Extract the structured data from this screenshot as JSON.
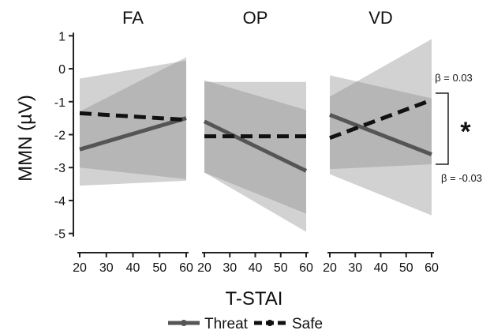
{
  "chart_data": {
    "type": "line",
    "ylabel": "MMN (µV)",
    "xlabel": "T-STAI",
    "xlim": [
      20,
      60
    ],
    "ylim": [
      -5.2,
      1.2
    ],
    "xticks": [
      20,
      30,
      40,
      50,
      60
    ],
    "yticks": [
      1,
      0,
      -1,
      -2,
      -3,
      -4,
      -5
    ],
    "grid": false,
    "legend_position": "bottom-center",
    "colors": {
      "threat": "#555555",
      "safe": "#111111",
      "band_light": "#d9d9d9",
      "band_dark": "#a6a6a6"
    },
    "legend": [
      {
        "label": "Threat",
        "style": "solid"
      },
      {
        "label": "Safe",
        "style": "dashed"
      }
    ],
    "panels": [
      {
        "title": "FA",
        "series": [
          {
            "name": "Threat",
            "style": "solid",
            "x": [
              20,
              60
            ],
            "y": [
              -2.45,
              -1.5
            ],
            "ci_lower": [
              -3.55,
              -3.4
            ],
            "ci_upper": [
              -1.3,
              0.35
            ]
          },
          {
            "name": "Safe",
            "style": "dashed",
            "x": [
              20,
              60
            ],
            "y": [
              -1.35,
              -1.55
            ],
            "ci_lower": [
              -3.0,
              -3.35
            ],
            "ci_upper": [
              -0.3,
              0.25
            ]
          }
        ]
      },
      {
        "title": "OP",
        "series": [
          {
            "name": "Threat",
            "style": "solid",
            "x": [
              20,
              60
            ],
            "y": [
              -1.6,
              -3.1
            ],
            "ci_lower": [
              -3.15,
              -4.95
            ],
            "ci_upper": [
              -0.35,
              -1.25
            ]
          },
          {
            "name": "Safe",
            "style": "dashed",
            "x": [
              20,
              60
            ],
            "y": [
              -2.05,
              -2.05
            ],
            "ci_lower": [
              -3.15,
              -4.4
            ],
            "ci_upper": [
              -0.4,
              -0.4
            ]
          }
        ]
      },
      {
        "title": "VD",
        "series": [
          {
            "name": "Threat",
            "style": "solid",
            "x": [
              20,
              60
            ],
            "y": [
              -1.4,
              -2.6
            ],
            "ci_lower": [
              -3.2,
              -4.45
            ],
            "ci_upper": [
              -0.2,
              -0.9
            ]
          },
          {
            "name": "Safe",
            "style": "dashed",
            "x": [
              20,
              60
            ],
            "y": [
              -2.1,
              -0.95
            ],
            "ci_lower": [
              -3.05,
              -2.9
            ],
            "ci_upper": [
              -0.85,
              0.9
            ]
          }
        ]
      }
    ],
    "annotations": {
      "beta_top": "β = 0.03",
      "beta_bottom": "β = -0.03",
      "significance": "*"
    }
  }
}
